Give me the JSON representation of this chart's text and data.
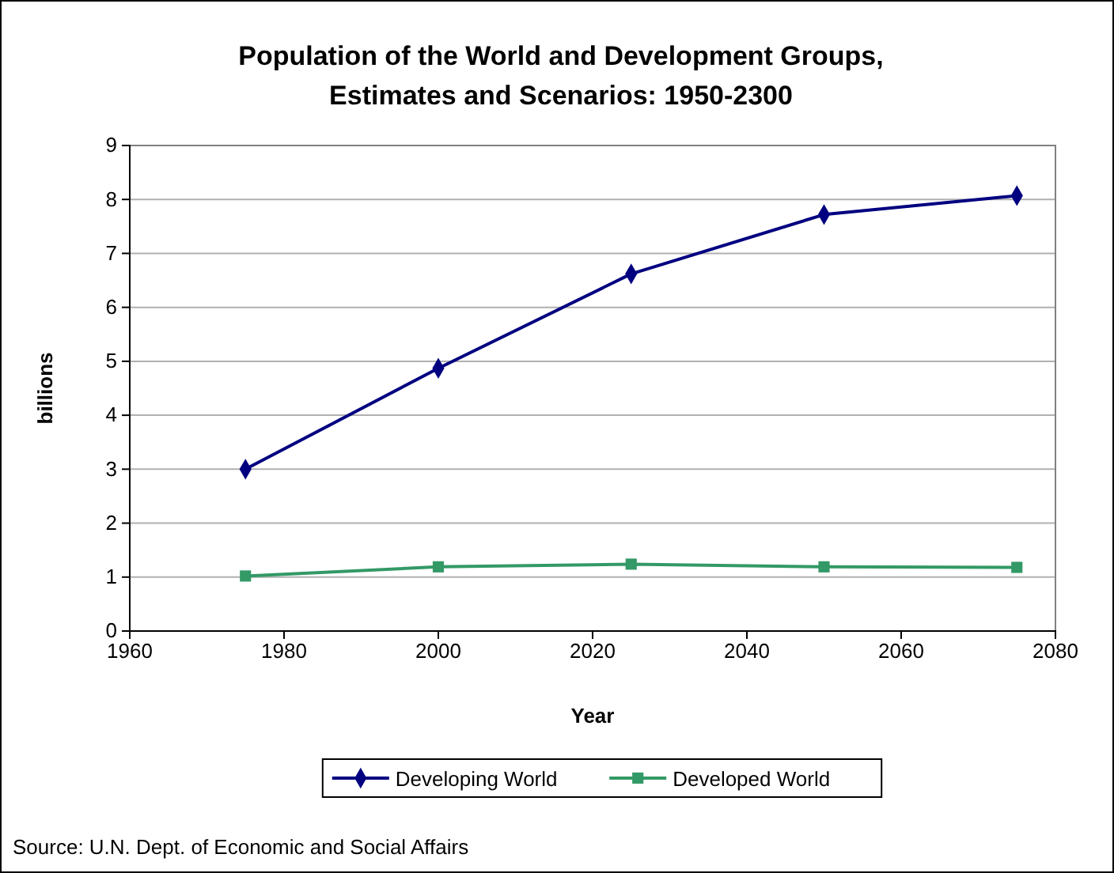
{
  "chart_data": {
    "type": "line",
    "title": "Population of the World and Development Groups,\nEstimates and Scenarios:  1950-2300",
    "xlabel": "Year",
    "ylabel": "billions",
    "x": [
      1975,
      2000,
      2025,
      2050,
      2075
    ],
    "series": [
      {
        "name": "Developing World",
        "color": "#000080",
        "marker": "diamond",
        "values": [
          3.0,
          4.87,
          6.62,
          7.72,
          8.07
        ]
      },
      {
        "name": "Developed World",
        "color": "#339966",
        "marker": "square",
        "values": [
          1.02,
          1.19,
          1.24,
          1.19,
          1.18
        ]
      }
    ],
    "xlim": [
      1960,
      2080
    ],
    "xticks": [
      1960,
      1980,
      2000,
      2020,
      2040,
      2060,
      2080
    ],
    "ylim": [
      0,
      9
    ],
    "yticks": [
      0,
      1,
      2,
      3,
      4,
      5,
      6,
      7,
      8,
      9
    ],
    "grid": "y",
    "legend": "bottom",
    "line_style": "solid",
    "annotations": [
      "Source:  U.N. Dept. of Economic and Social Affairs"
    ]
  }
}
